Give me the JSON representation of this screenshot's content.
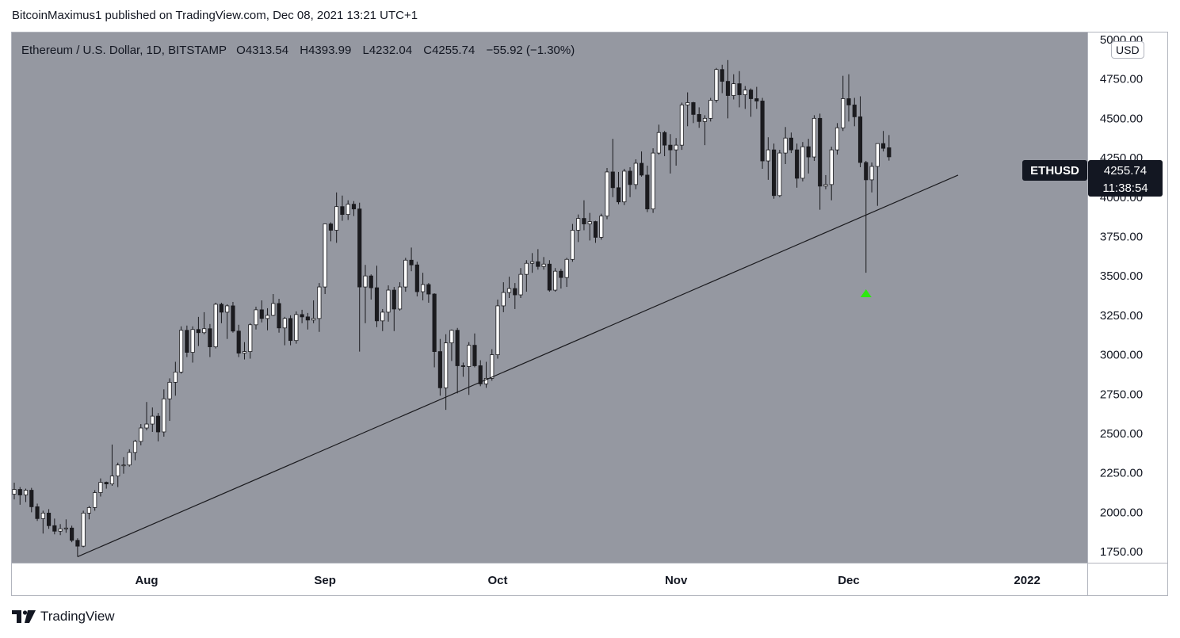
{
  "header": {
    "publisher_text": "BitcoinMaximus1 published on TradingView.com, Dec 08, 2021 13:21 UTC+1"
  },
  "legend": {
    "symbol_text": "Ethereum / U.S. Dollar, 1D, BITSTAMP",
    "open_label": "O",
    "open_value": "4313.54",
    "high_label": "H",
    "high_value": "4393.99",
    "low_label": "L",
    "low_value": "4232.04",
    "close_label": "C",
    "close_value": "4255.74",
    "change_text": "−55.92 (−1.30%)"
  },
  "currency_badge": "USD",
  "price_tag": {
    "symbol": "ETHUSD",
    "price": "4255.74",
    "countdown": "11:38:54"
  },
  "footer": {
    "brand": "TradingView"
  },
  "colors": {
    "plot_background": "#9598a1",
    "up_candle": "#ffffff",
    "down_candle": "#1b1b1f",
    "trendline": "#1b1b1f",
    "signal_arrow": "#2ce80e",
    "price_tag_bg": "#131722",
    "axis_text": "#131722"
  },
  "chart_data": {
    "type": "candlestick",
    "y_axis": {
      "min": 1680,
      "max": 5050,
      "ticks": [
        1750,
        2000,
        2250,
        2500,
        2750,
        3000,
        3250,
        3500,
        3750,
        4000,
        4250,
        4500,
        4750,
        5000
      ],
      "tick_labels": [
        "1750.00",
        "2000.00",
        "2250.00",
        "2500.00",
        "2750.00",
        "3000.00",
        "3250.00",
        "3500.00",
        "3750.00",
        "4000.00",
        "4250.00",
        "4500.00",
        "4750.00",
        "5000.00"
      ]
    },
    "x_axis": {
      "start_date": "2021-07-09",
      "end_date": "2022-01-12",
      "ticks": [
        {
          "date": "2021-08-01",
          "label": "Aug"
        },
        {
          "date": "2021-09-01",
          "label": "Sep"
        },
        {
          "date": "2021-10-01",
          "label": "Oct"
        },
        {
          "date": "2021-11-01",
          "label": "Nov"
        },
        {
          "date": "2021-12-01",
          "label": "Dec"
        },
        {
          "date": "2022-01-01",
          "label": "2022"
        }
      ]
    },
    "ohlc": [
      [
        "2021-07-09",
        2115,
        2188,
        2082,
        2145
      ],
      [
        "2021-07-10",
        2145,
        2160,
        2048,
        2110
      ],
      [
        "2021-07-11",
        2110,
        2150,
        2065,
        2140
      ],
      [
        "2021-07-12",
        2140,
        2155,
        2000,
        2035
      ],
      [
        "2021-07-13",
        2035,
        2055,
        1945,
        1960
      ],
      [
        "2021-07-14",
        1960,
        2010,
        1865,
        1995
      ],
      [
        "2021-07-15",
        1995,
        2020,
        1895,
        1915
      ],
      [
        "2021-07-16",
        1915,
        1960,
        1860,
        1880
      ],
      [
        "2021-07-17",
        1880,
        1925,
        1855,
        1895
      ],
      [
        "2021-07-18",
        1895,
        1955,
        1870,
        1900
      ],
      [
        "2021-07-19",
        1900,
        1915,
        1810,
        1822
      ],
      [
        "2021-07-20",
        1822,
        1835,
        1718,
        1785
      ],
      [
        "2021-07-21",
        1785,
        2010,
        1778,
        1995
      ],
      [
        "2021-07-22",
        1995,
        2040,
        1955,
        2030
      ],
      [
        "2021-07-23",
        2030,
        2140,
        2010,
        2125
      ],
      [
        "2021-07-24",
        2125,
        2215,
        2100,
        2190
      ],
      [
        "2021-07-25",
        2190,
        2195,
        2150,
        2180
      ],
      [
        "2021-07-26",
        2180,
        2430,
        2168,
        2230
      ],
      [
        "2021-07-27",
        2230,
        2315,
        2160,
        2300
      ],
      [
        "2021-07-28",
        2300,
        2350,
        2245,
        2300
      ],
      [
        "2021-07-29",
        2300,
        2400,
        2290,
        2380
      ],
      [
        "2021-07-30",
        2380,
        2460,
        2330,
        2450
      ],
      [
        "2021-07-31",
        2450,
        2560,
        2425,
        2535
      ],
      [
        "2021-08-01",
        2535,
        2700,
        2520,
        2560
      ],
      [
        "2021-08-02",
        2560,
        2665,
        2510,
        2610
      ],
      [
        "2021-08-03",
        2610,
        2630,
        2450,
        2510
      ],
      [
        "2021-08-04",
        2510,
        2780,
        2480,
        2720
      ],
      [
        "2021-08-05",
        2720,
        2850,
        2580,
        2825
      ],
      [
        "2021-08-06",
        2825,
        2955,
        2740,
        2890
      ],
      [
        "2021-08-07",
        2890,
        3180,
        2880,
        3155
      ],
      [
        "2021-08-08",
        3155,
        3185,
        2985,
        3015
      ],
      [
        "2021-08-09",
        3015,
        3180,
        2950,
        3160
      ],
      [
        "2021-08-10",
        3160,
        3240,
        3055,
        3140
      ],
      [
        "2021-08-11",
        3140,
        3270,
        3130,
        3165
      ],
      [
        "2021-08-12",
        3165,
        3195,
        2985,
        3050
      ],
      [
        "2021-08-13",
        3050,
        3330,
        3040,
        3320
      ],
      [
        "2021-08-14",
        3320,
        3330,
        3200,
        3270
      ],
      [
        "2021-08-15",
        3270,
        3320,
        3100,
        3310
      ],
      [
        "2021-08-16",
        3310,
        3335,
        3140,
        3150
      ],
      [
        "2021-08-17",
        3150,
        3190,
        2985,
        3010
      ],
      [
        "2021-08-18",
        3010,
        3080,
        2970,
        3020
      ],
      [
        "2021-08-19",
        3020,
        3200,
        2975,
        3190
      ],
      [
        "2021-08-20",
        3190,
        3305,
        3160,
        3285
      ],
      [
        "2021-08-21",
        3285,
        3345,
        3205,
        3230
      ],
      [
        "2021-08-22",
        3230,
        3295,
        3155,
        3250
      ],
      [
        "2021-08-23",
        3250,
        3385,
        3245,
        3325
      ],
      [
        "2021-08-24",
        3325,
        3355,
        3140,
        3170
      ],
      [
        "2021-08-25",
        3170,
        3240,
        3060,
        3230
      ],
      [
        "2021-08-26",
        3230,
        3250,
        3060,
        3090
      ],
      [
        "2021-08-27",
        3090,
        3275,
        3070,
        3255
      ],
      [
        "2021-08-28",
        3255,
        3285,
        3200,
        3240
      ],
      [
        "2021-08-29",
        3240,
        3265,
        3160,
        3220
      ],
      [
        "2021-08-30",
        3220,
        3345,
        3200,
        3230
      ],
      [
        "2021-08-31",
        3230,
        3455,
        3145,
        3430
      ],
      [
        "2021-09-01",
        3430,
        3830,
        3385,
        3830
      ],
      [
        "2021-09-02",
        3830,
        3840,
        3720,
        3790
      ],
      [
        "2021-09-03",
        3790,
        4030,
        3710,
        3940
      ],
      [
        "2021-09-04",
        3940,
        4010,
        3850,
        3890
      ],
      [
        "2021-09-05",
        3890,
        3980,
        3855,
        3955
      ],
      [
        "2021-09-06",
        3955,
        3975,
        3880,
        3925
      ],
      [
        "2021-09-07",
        3925,
        3965,
        3020,
        3430
      ],
      [
        "2021-09-08",
        3430,
        3570,
        3200,
        3500
      ],
      [
        "2021-09-09",
        3500,
        3510,
        3350,
        3425
      ],
      [
        "2021-09-10",
        3425,
        3565,
        3175,
        3215
      ],
      [
        "2021-09-11",
        3215,
        3290,
        3150,
        3270
      ],
      [
        "2021-09-12",
        3270,
        3440,
        3210,
        3410
      ],
      [
        "2021-09-13",
        3410,
        3430,
        3150,
        3290
      ],
      [
        "2021-09-14",
        3290,
        3460,
        3280,
        3430
      ],
      [
        "2021-09-15",
        3430,
        3615,
        3400,
        3600
      ],
      [
        "2021-09-16",
        3600,
        3680,
        3530,
        3570
      ],
      [
        "2021-09-17",
        3570,
        3590,
        3370,
        3400
      ],
      [
        "2021-09-18",
        3400,
        3520,
        3345,
        3445
      ],
      [
        "2021-09-19",
        3445,
        3455,
        3330,
        3385
      ],
      [
        "2021-09-20",
        3385,
        3390,
        2920,
        3020
      ],
      [
        "2021-09-21",
        3020,
        3100,
        2740,
        2790
      ],
      [
        "2021-09-22",
        2790,
        3130,
        2650,
        3075
      ],
      [
        "2021-09-23",
        3075,
        3160,
        2960,
        3155
      ],
      [
        "2021-09-24",
        3155,
        3170,
        2755,
        2930
      ],
      [
        "2021-09-25",
        2930,
        2950,
        2860,
        2925
      ],
      [
        "2021-09-26",
        2925,
        3080,
        2745,
        3060
      ],
      [
        "2021-09-27",
        3060,
        3135,
        2920,
        2930
      ],
      [
        "2021-09-28",
        2930,
        2965,
        2800,
        2815
      ],
      [
        "2021-09-29",
        2815,
        2955,
        2790,
        2850
      ],
      [
        "2021-09-30",
        2850,
        3035,
        2835,
        3000
      ],
      [
        "2021-10-01",
        3000,
        3350,
        2975,
        3310
      ],
      [
        "2021-10-02",
        3310,
        3460,
        3270,
        3395
      ],
      [
        "2021-10-03",
        3395,
        3495,
        3360,
        3420
      ],
      [
        "2021-10-04",
        3420,
        3455,
        3290,
        3380
      ],
      [
        "2021-10-05",
        3380,
        3550,
        3360,
        3510
      ],
      [
        "2021-10-06",
        3510,
        3600,
        3400,
        3580
      ],
      [
        "2021-10-07",
        3580,
        3645,
        3520,
        3590
      ],
      [
        "2021-10-08",
        3590,
        3670,
        3540,
        3560
      ],
      [
        "2021-10-09",
        3560,
        3620,
        3540,
        3575
      ],
      [
        "2021-10-10",
        3575,
        3600,
        3400,
        3410
      ],
      [
        "2021-10-11",
        3410,
        3550,
        3400,
        3530
      ],
      [
        "2021-10-12",
        3530,
        3545,
        3420,
        3490
      ],
      [
        "2021-10-13",
        3490,
        3615,
        3430,
        3605
      ],
      [
        "2021-10-14",
        3605,
        3830,
        3590,
        3790
      ],
      [
        "2021-10-15",
        3790,
        3890,
        3715,
        3865
      ],
      [
        "2021-10-16",
        3865,
        3980,
        3790,
        3830
      ],
      [
        "2021-10-17",
        3830,
        3900,
        3725,
        3845
      ],
      [
        "2021-10-18",
        3845,
        3850,
        3710,
        3745
      ],
      [
        "2021-10-19",
        3745,
        3895,
        3730,
        3880
      ],
      [
        "2021-10-20",
        3880,
        4185,
        3860,
        4160
      ],
      [
        "2021-10-21",
        4160,
        4370,
        4000,
        4060
      ],
      [
        "2021-10-22",
        4060,
        4160,
        3955,
        3970
      ],
      [
        "2021-10-23",
        3970,
        4180,
        3950,
        4165
      ],
      [
        "2021-10-24",
        4165,
        4190,
        4000,
        4080
      ],
      [
        "2021-10-25",
        4080,
        4240,
        4050,
        4215
      ],
      [
        "2021-10-26",
        4215,
        4290,
        4130,
        4140
      ],
      [
        "2021-10-27",
        4140,
        4200,
        3905,
        3925
      ],
      [
        "2021-10-28",
        3925,
        4310,
        3900,
        4280
      ],
      [
        "2021-10-29",
        4280,
        4460,
        4270,
        4410
      ],
      [
        "2021-10-30",
        4410,
        4420,
        4260,
        4330
      ],
      [
        "2021-10-31",
        4330,
        4400,
        4150,
        4300
      ],
      [
        "2021-11-01",
        4300,
        4375,
        4200,
        4330
      ],
      [
        "2021-11-02",
        4330,
        4600,
        4300,
        4585
      ],
      [
        "2021-11-03",
        4585,
        4665,
        4450,
        4600
      ],
      [
        "2021-11-04",
        4600,
        4605,
        4470,
        4525
      ],
      [
        "2021-11-05",
        4525,
        4570,
        4440,
        4480
      ],
      [
        "2021-11-06",
        4480,
        4520,
        4330,
        4500
      ],
      [
        "2021-11-07",
        4500,
        4630,
        4480,
        4615
      ],
      [
        "2021-11-08",
        4615,
        4820,
        4600,
        4810
      ],
      [
        "2021-11-09",
        4810,
        4840,
        4660,
        4735
      ],
      [
        "2021-11-10",
        4735,
        4870,
        4500,
        4645
      ],
      [
        "2021-11-11",
        4645,
        4780,
        4620,
        4720
      ],
      [
        "2021-11-12",
        4720,
        4800,
        4570,
        4650
      ],
      [
        "2021-11-13",
        4650,
        4705,
        4560,
        4680
      ],
      [
        "2021-11-14",
        4680,
        4690,
        4510,
        4625
      ],
      [
        "2021-11-15",
        4625,
        4700,
        4560,
        4610
      ],
      [
        "2021-11-16",
        4610,
        4630,
        4180,
        4230
      ],
      [
        "2021-11-17",
        4230,
        4380,
        4110,
        4300
      ],
      [
        "2021-11-18",
        4300,
        4340,
        3990,
        4010
      ],
      [
        "2021-11-19",
        4010,
        4300,
        4000,
        4280
      ],
      [
        "2021-11-20",
        4280,
        4445,
        4210,
        4375
      ],
      [
        "2021-11-21",
        4375,
        4410,
        4280,
        4300
      ],
      [
        "2021-11-22",
        4300,
        4340,
        4060,
        4120
      ],
      [
        "2021-11-23",
        4120,
        4350,
        4100,
        4320
      ],
      [
        "2021-11-24",
        4320,
        4370,
        4150,
        4255
      ],
      [
        "2021-11-25",
        4255,
        4520,
        4230,
        4500
      ],
      [
        "2021-11-26",
        4500,
        4530,
        3920,
        4070
      ],
      [
        "2021-11-27",
        4070,
        4140,
        4050,
        4080
      ],
      [
        "2021-11-28",
        4080,
        4320,
        3980,
        4300
      ],
      [
        "2021-11-29",
        4300,
        4470,
        4270,
        4440
      ],
      [
        "2021-11-30",
        4440,
        4770,
        4420,
        4625
      ],
      [
        "2021-12-01",
        4625,
        4780,
        4480,
        4585
      ],
      [
        "2021-12-02",
        4585,
        4630,
        4450,
        4510
      ],
      [
        "2021-12-03",
        4510,
        4640,
        4190,
        4220
      ],
      [
        "2021-12-04",
        4220,
        4230,
        3520,
        4110
      ],
      [
        "2021-12-05",
        4110,
        4220,
        4030,
        4195
      ],
      [
        "2021-12-06",
        4195,
        4340,
        3945,
        4340
      ],
      [
        "2021-12-07",
        4340,
        4420,
        4290,
        4310
      ],
      [
        "2021-12-08",
        4313.54,
        4393.99,
        4232.04,
        4255.74
      ]
    ],
    "trendline": [
      [
        "2021-07-20",
        1718
      ],
      [
        "2021-12-20",
        4140
      ]
    ],
    "marker": {
      "type": "arrow-up",
      "date": "2021-12-04",
      "value": 3390
    },
    "last_price": 4255.74,
    "grid": false,
    "legend_position": "top-left"
  }
}
